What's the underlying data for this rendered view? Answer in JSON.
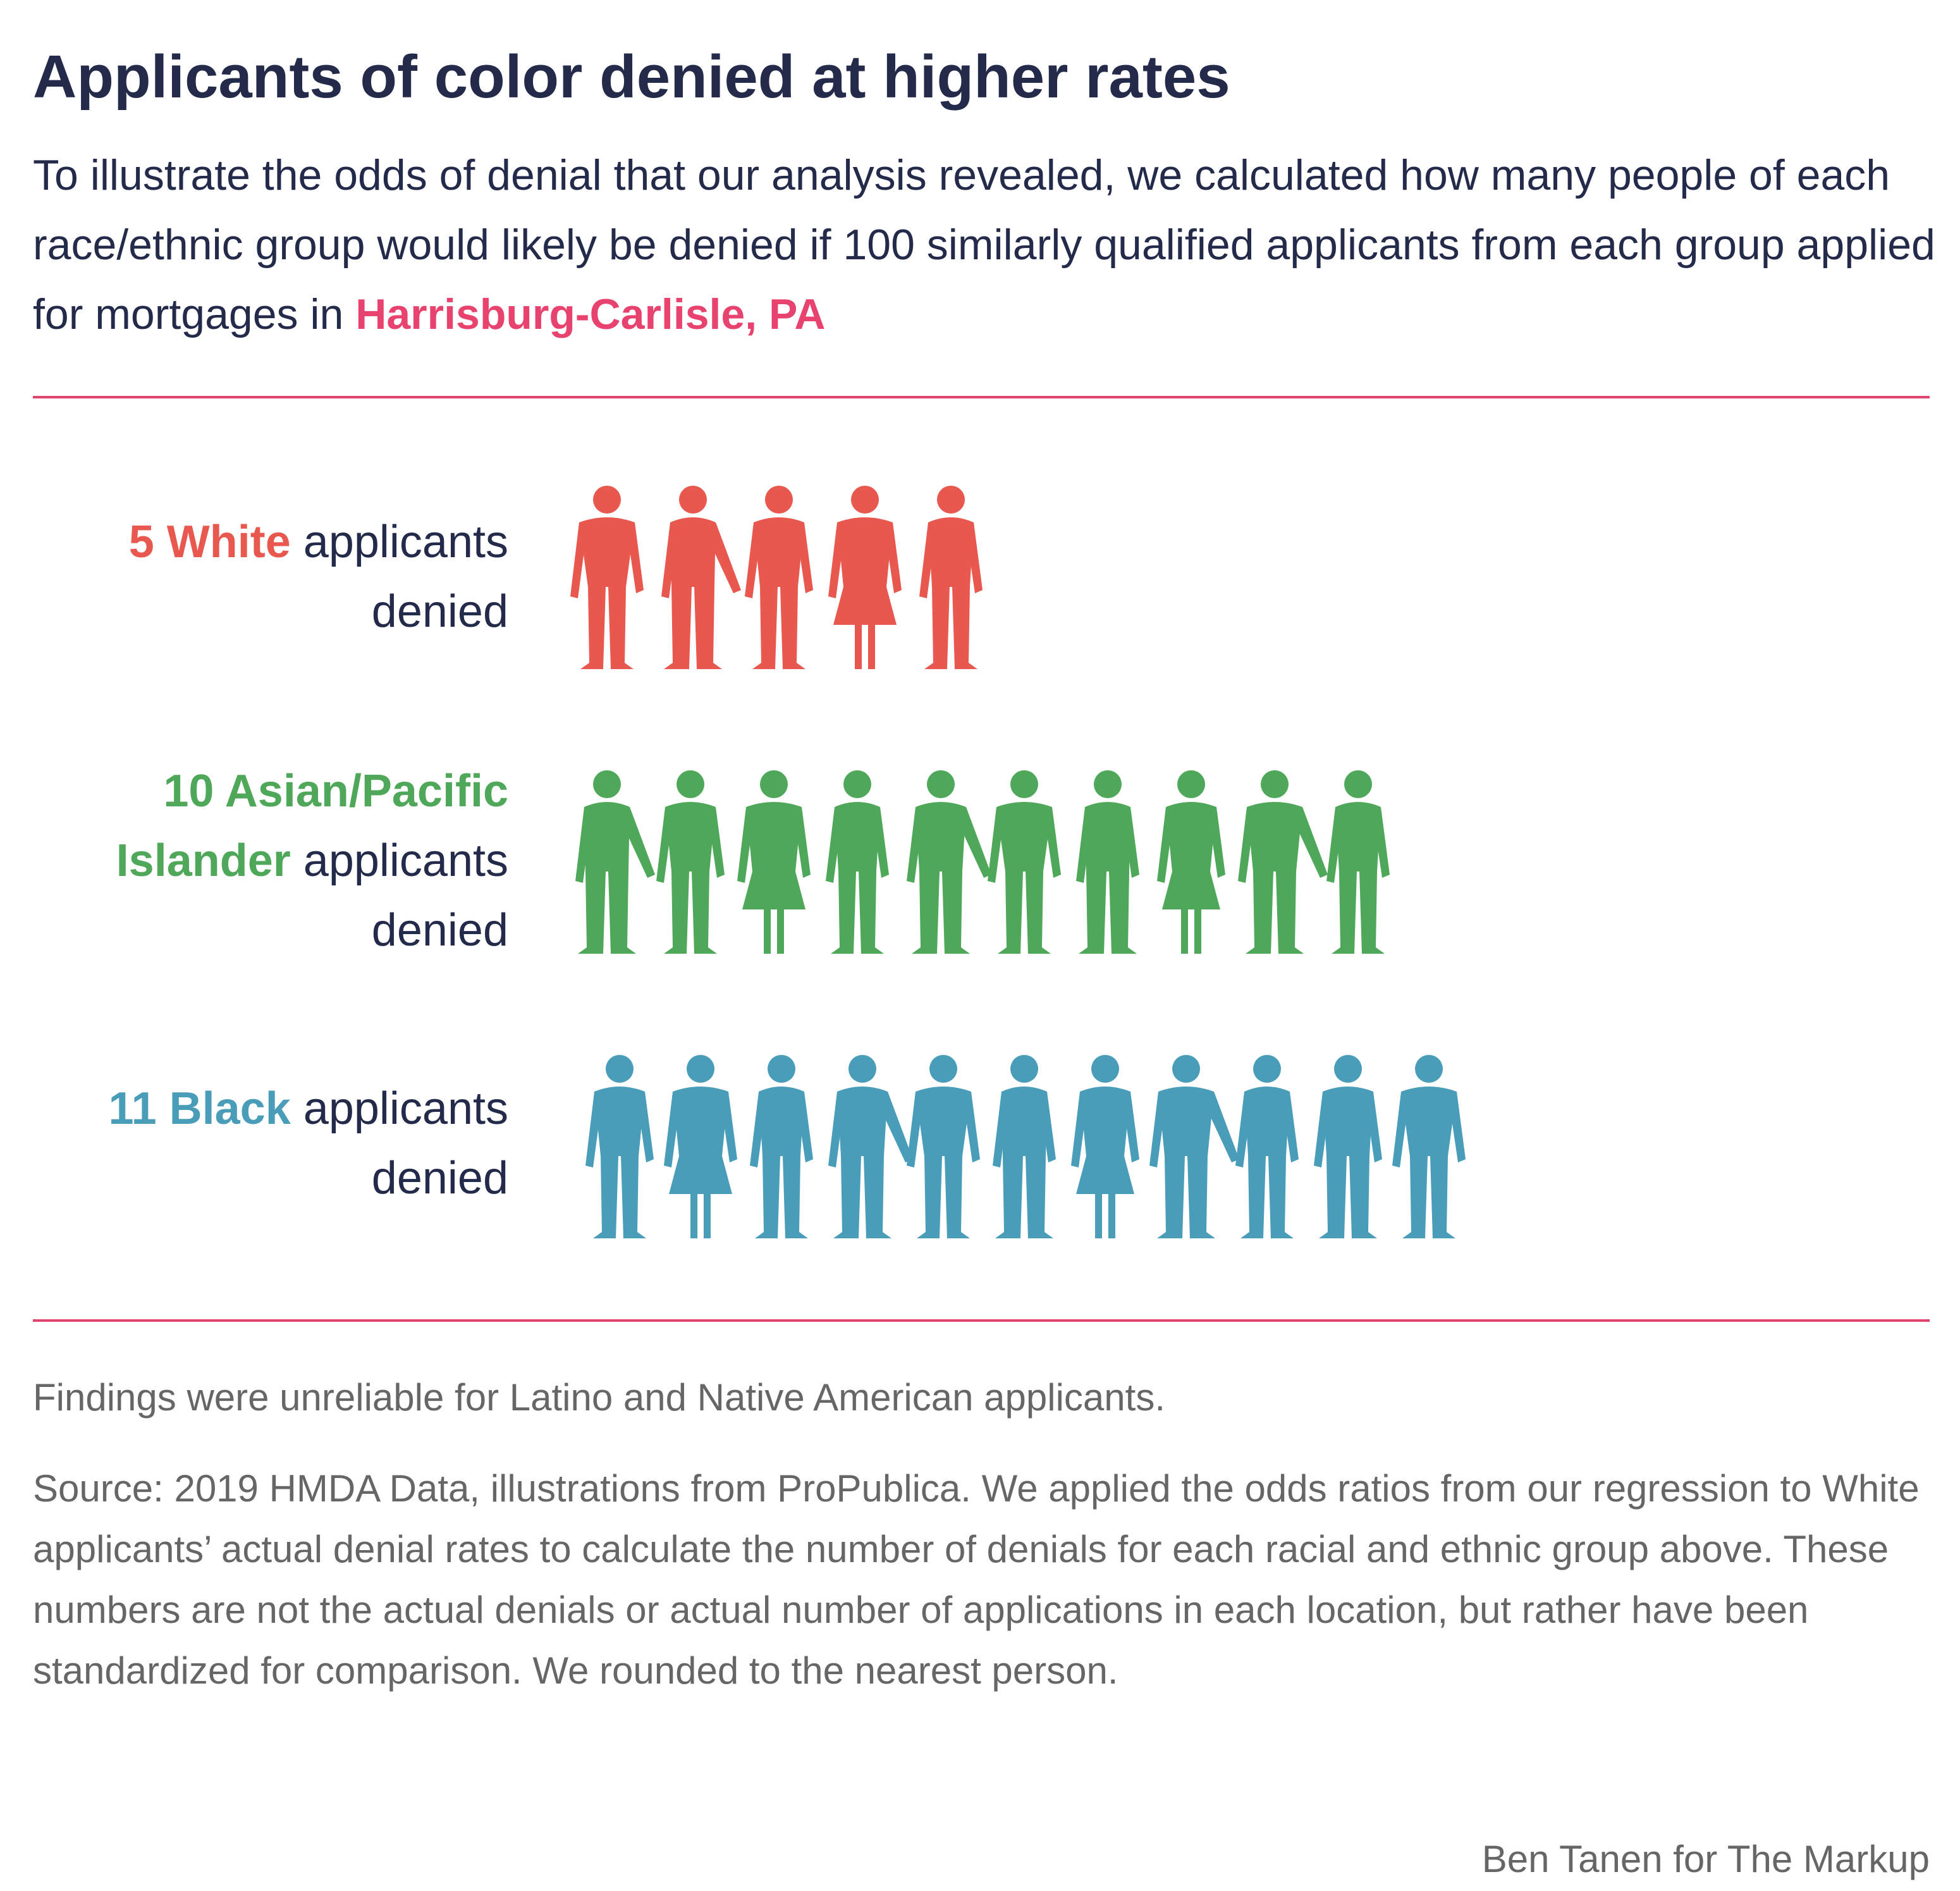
{
  "title": "Applicants of color denied at higher rates",
  "subtitle": {
    "text": "To illustrate the odds of denial that our analysis revealed, we calculated how many people of each race/ethnic group would likely be denied if 100 similarly qualified applicants from each group applied for mortgages in",
    "location": "Harrisburg-Carlisle, PA"
  },
  "chart_data": {
    "type": "bar",
    "title": "Applicants of color denied at higher rates",
    "unit": "applicants denied per 100 similarly qualified applicants",
    "categories": [
      "White",
      "Asian/Pacific Islander",
      "Black"
    ],
    "values": [
      5,
      10,
      11
    ],
    "rows": [
      {
        "count": 5,
        "count_group": "5 White",
        "group_rest": "",
        "suffix": "applicants",
        "suffix2": "denied",
        "color": "#e8584f"
      },
      {
        "count": 10,
        "count_group": "10 Asian/Pacific",
        "group_rest": "Islander",
        "suffix": "applicants",
        "suffix2": "denied",
        "color": "#4fa85a"
      },
      {
        "count": 11,
        "count_group": "11 Black",
        "group_rest": "",
        "suffix": "applicants",
        "suffix2": "denied",
        "color": "#4a9db8"
      }
    ]
  },
  "footnote1": "Findings were unreliable for Latino and Native American applicants.",
  "footnote2": "Source: 2019 HMDA Data, illustrations from ProPublica. We applied the odds ratios from our regression to White applicants’ actual denial rates to calculate the number of denials for each racial and ethnic group above. These numbers are not the actual denials or actual number of applications in each location, but rather have been standardized for comparison. We rounded to the nearest person.",
  "credit": "Ben Tanen for The Markup"
}
